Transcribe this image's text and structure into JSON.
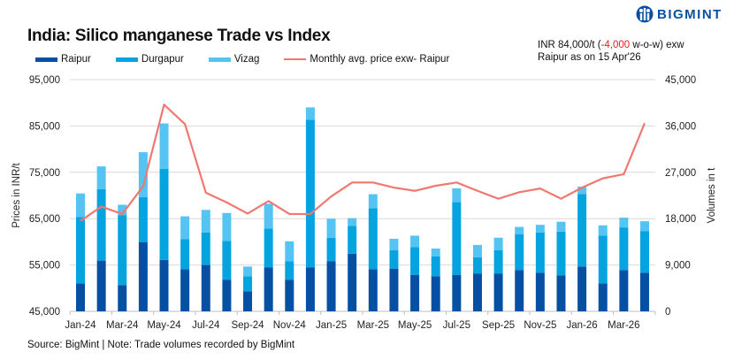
{
  "logo_text": "BIGMINT",
  "note": {
    "prefix": "INR 84,000/t (",
    "change": "-4,000",
    "suffix": " w-o-w) exw",
    "line2": "Raipur as on 15 Apr'26"
  },
  "source": "Source: BigMint | Note: Trade volumes recorded by BigMint",
  "colors": {
    "raipur": "#0550a3",
    "durgapur": "#05a3e0",
    "vizag": "#55c4f2",
    "price": "#f07870",
    "change_negative": "#e02020"
  },
  "chart_data": {
    "type": "bar",
    "stacked": true,
    "title": "India: Silico manganese Trade vs Index",
    "ylabel": "Prices in INR/t",
    "y2label": "Volumes in t",
    "ylim": [
      45000,
      95000
    ],
    "y2lim": [
      0,
      45000
    ],
    "yticks": [
      "45,000",
      "55,000",
      "65,000",
      "75,000",
      "85,000",
      "95,000"
    ],
    "y2ticks": [
      "0",
      "9,000",
      "18,000",
      "27,000",
      "36,000",
      "45,000"
    ],
    "grid": true,
    "legend_position": "top-left",
    "categories": [
      "Jan-24",
      "Feb-24",
      "Mar-24",
      "Apr-24",
      "May-24",
      "Jun-24",
      "Jul-24",
      "Aug-24",
      "Sep-24",
      "Oct-24",
      "Nov-24",
      "Dec-24",
      "Jan-25",
      "Feb-25",
      "Mar-25",
      "Apr-25",
      "May-25",
      "Jun-25",
      "Jul-25",
      "Aug-25",
      "Sep-25",
      "Oct-25",
      "Nov-25",
      "Dec-25",
      "Jan-26",
      "Feb-26",
      "Mar-26",
      "Apr-26"
    ],
    "xtick_labels": [
      "Jan-24",
      "Mar-24",
      "May-24",
      "Jul-24",
      "Sep-24",
      "Nov-24",
      "Jan-25",
      "Mar-25",
      "May-25",
      "Jul-25",
      "Sep-25",
      "Nov-25",
      "Jan-26",
      "Mar-26"
    ],
    "series": [
      {
        "name": "Raipur",
        "type": "bar",
        "axis": "right",
        "values": [
          5400,
          9850,
          5100,
          13400,
          10000,
          8150,
          9000,
          6100,
          3900,
          8500,
          6100,
          8500,
          9700,
          11200,
          8150,
          8300,
          7100,
          6800,
          7100,
          7300,
          7300,
          8000,
          7500,
          7000,
          8700,
          5400,
          8000,
          7500
        ]
      },
      {
        "name": "Durgapur",
        "type": "bar",
        "axis": "right",
        "values": [
          12900,
          13900,
          13600,
          8800,
          17700,
          5900,
          6300,
          7600,
          2900,
          7600,
          3600,
          28700,
          4600,
          5400,
          11900,
          3600,
          5400,
          3900,
          14100,
          3200,
          4600,
          7000,
          7800,
          8500,
          14100,
          9300,
          8300,
          8100
        ]
      },
      {
        "name": "Vizag",
        "type": "bar",
        "axis": "right",
        "values": [
          4600,
          4400,
          2000,
          8700,
          8800,
          4400,
          4400,
          5400,
          1900,
          4800,
          3900,
          2400,
          3700,
          1500,
          2700,
          2200,
          2200,
          1500,
          2700,
          2400,
          2400,
          1400,
          1500,
          1900,
          1400,
          2000,
          1900,
          1900
        ]
      },
      {
        "name": "Monthly avg. price exw- Raipur",
        "type": "line",
        "axis": "left",
        "values": [
          64500,
          67600,
          66000,
          72000,
          89600,
          85400,
          70600,
          68500,
          66100,
          68800,
          66000,
          66000,
          69800,
          72800,
          72800,
          71700,
          71000,
          72100,
          72800,
          71000,
          69300,
          70700,
          71500,
          69300,
          71700,
          73700,
          74600,
          85600
        ]
      }
    ]
  }
}
